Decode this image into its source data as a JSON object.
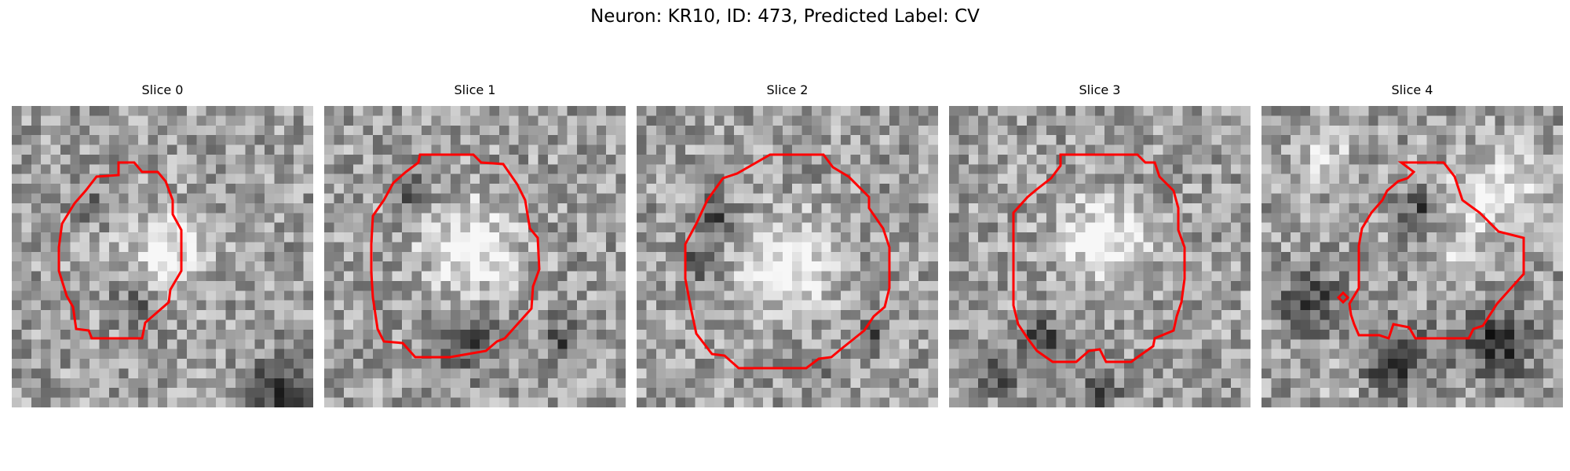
{
  "title": "Neuron: KR10, ID: 473, Predicted Label: CV",
  "contour_color": "#ff0000",
  "panels": [
    {
      "label": "Slice 0"
    },
    {
      "label": "Slice 1"
    },
    {
      "label": "Slice 2"
    },
    {
      "label": "Slice 3"
    },
    {
      "label": "Slice 4"
    }
  ]
}
